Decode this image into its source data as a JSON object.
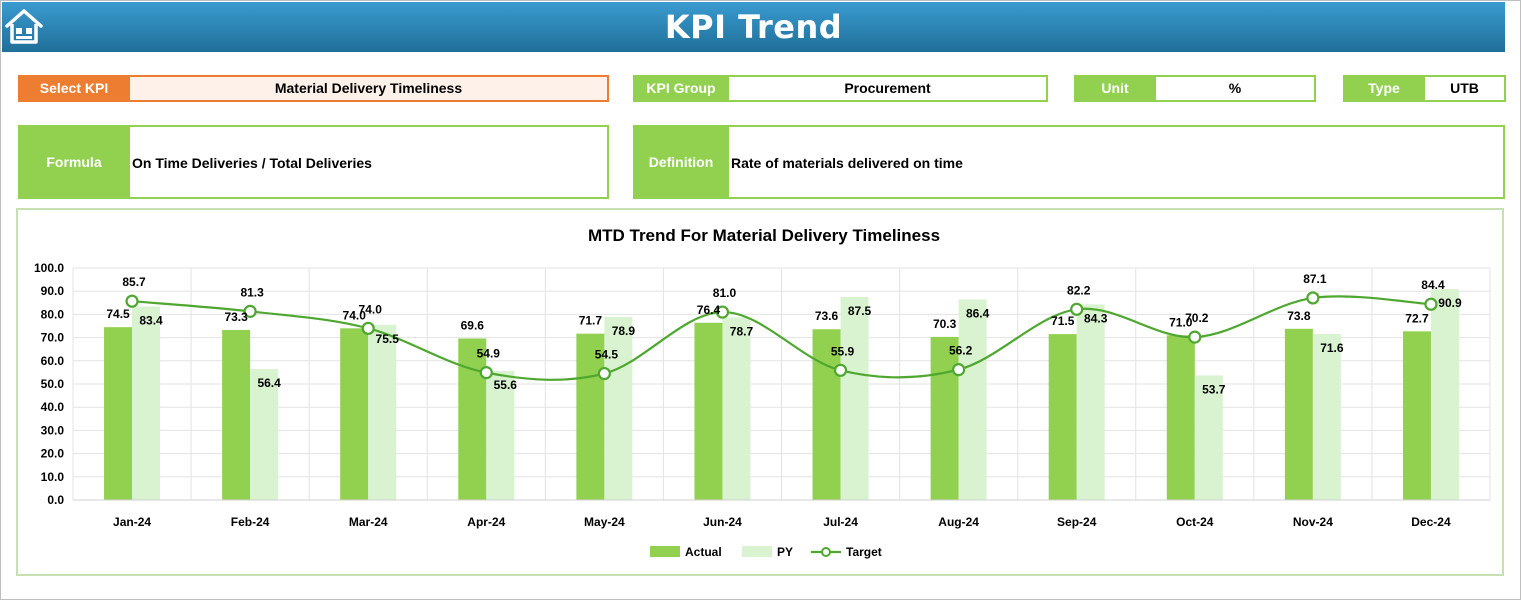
{
  "header": {
    "title": "KPI Trend",
    "home_icon": "home-icon"
  },
  "select_kpi": {
    "label": "Select KPI",
    "value": "Material Delivery Timeliness"
  },
  "kpi_group": {
    "label": "KPI Group",
    "value": "Procurement"
  },
  "unit": {
    "label": "Unit",
    "value": "%"
  },
  "type": {
    "label": "Type",
    "value": "UTB"
  },
  "formula": {
    "label": "Formula",
    "value": "On Time Deliveries / Total Deliveries"
  },
  "definition": {
    "label": "Definition",
    "value": "Rate of materials delivered on time"
  },
  "colors": {
    "header_top": "#3a9bd0",
    "header_bottom": "#1f6f98",
    "accent_orange": "#ed7d31",
    "accent_green": "#92d050",
    "actual": "#92d050",
    "py": "#d9f2d0",
    "target": "#4ea72e"
  },
  "chart_data": {
    "type": "bar",
    "title": "MTD Trend For Material Delivery Timeliness",
    "categories": [
      "Jan-24",
      "Feb-24",
      "Mar-24",
      "Apr-24",
      "May-24",
      "Jun-24",
      "Jul-24",
      "Aug-24",
      "Sep-24",
      "Oct-24",
      "Nov-24",
      "Dec-24"
    ],
    "series": [
      {
        "name": "Actual",
        "kind": "bar",
        "values": [
          74.5,
          73.3,
          74.0,
          69.6,
          71.7,
          76.4,
          73.6,
          70.3,
          71.5,
          71.0,
          73.8,
          72.7
        ]
      },
      {
        "name": "PY",
        "kind": "bar",
        "values": [
          83.4,
          56.4,
          75.5,
          55.6,
          78.9,
          78.7,
          87.5,
          86.4,
          84.3,
          53.7,
          71.6,
          90.9
        ]
      },
      {
        "name": "Target",
        "kind": "line",
        "values": [
          85.7,
          81.3,
          74.0,
          54.9,
          54.5,
          81.0,
          55.9,
          56.2,
          82.2,
          70.2,
          87.1,
          84.4
        ]
      }
    ],
    "ylim": [
      0,
      100
    ],
    "yticks": [
      "0.0",
      "10.0",
      "20.0",
      "30.0",
      "40.0",
      "50.0",
      "60.0",
      "70.0",
      "80.0",
      "90.0",
      "100.0"
    ],
    "grid": true,
    "legend": "bottom"
  }
}
